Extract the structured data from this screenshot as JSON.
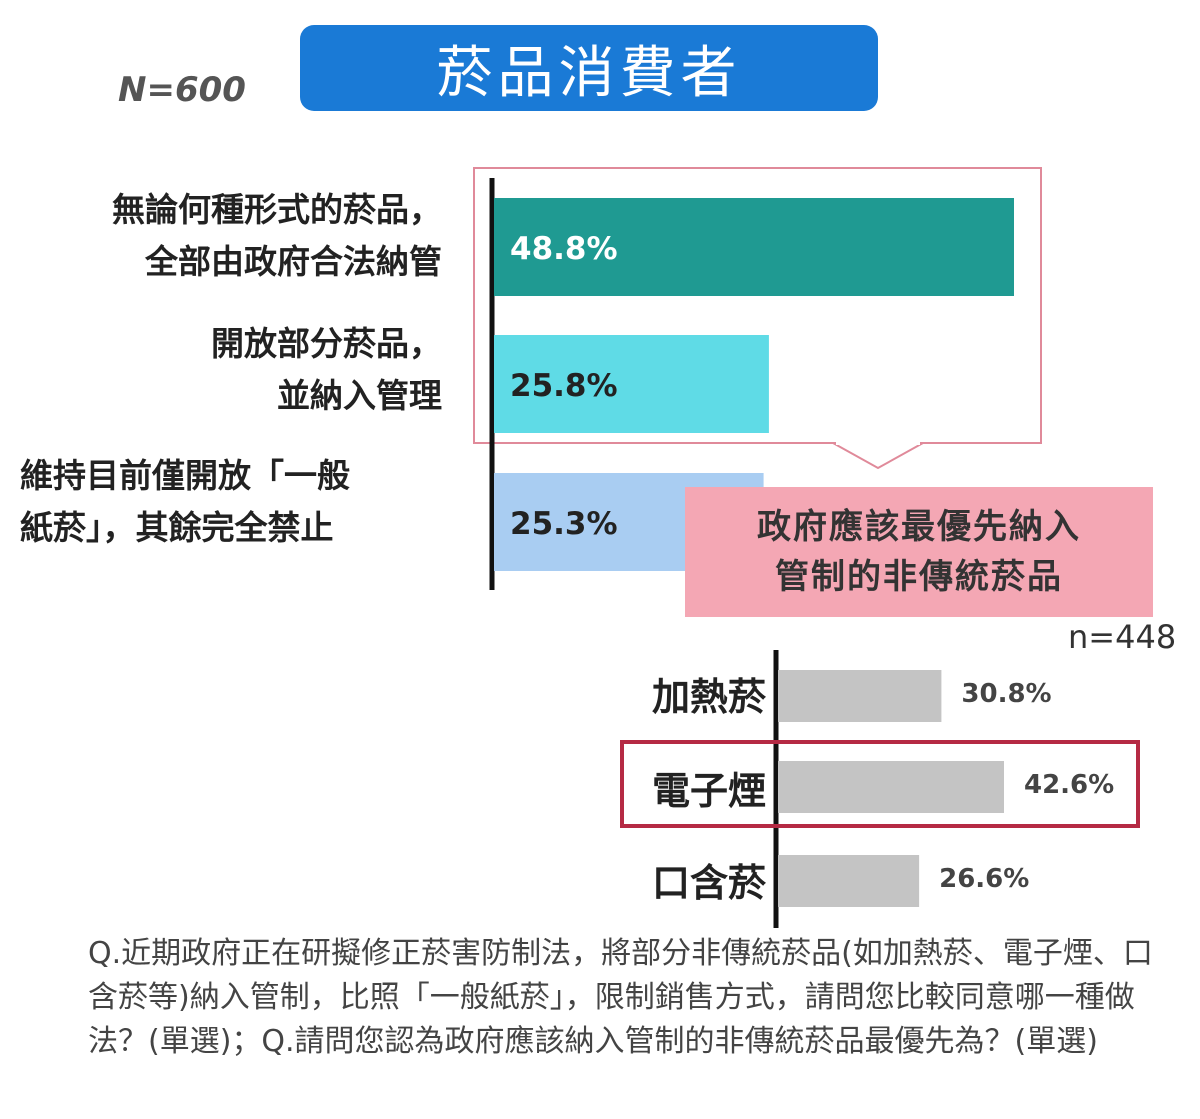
{
  "title": "菸品消費者",
  "n_main": "N=600",
  "chart_data": [
    {
      "type": "bar",
      "orientation": "horizontal",
      "categories": [
        [
          "無論何種形式的菸品，",
          "全部由政府合法納管"
        ],
        [
          "開放部分菸品，",
          "並納入管理"
        ],
        [
          "維持目前僅開放「一般",
          "紙菸」，其餘完全禁止"
        ]
      ],
      "values": [
        48.8,
        25.8,
        25.3
      ],
      "value_labels": [
        "48.8%",
        "25.8%",
        "25.3%"
      ],
      "colors": [
        "#1f9a92",
        "#5fdbe6",
        "#a9cdf2"
      ],
      "label_colors": [
        "#ffffff",
        "#222222",
        "#222222"
      ],
      "xlim": [
        0,
        50
      ],
      "unit": "%"
    },
    {
      "type": "bar",
      "orientation": "horizontal",
      "title": [
        "政府應該最優先納入",
        "管制的非傳統菸品"
      ],
      "n": "n=448",
      "categories": [
        "加熱菸",
        "電子煙",
        "口含菸"
      ],
      "values": [
        30.8,
        42.6,
        26.6
      ],
      "value_labels": [
        "30.8%",
        "42.6%",
        "26.6%"
      ],
      "colors": [
        "#c4c4c4",
        "#c4c4c4",
        "#c4c4c4"
      ],
      "highlighted": "電子煙",
      "xlim": [
        0,
        50
      ],
      "unit": "%"
    }
  ],
  "colors": {
    "title_bg": "#1a7ad6",
    "callout_bg": "#f4a7b4",
    "pink_border": "#e08a9a",
    "highlight_border": "#b52a44"
  },
  "question_text": "Q.近期政府正在研擬修正菸害防制法，將部分非傳統菸品(如加熱菸、電子煙、口含菸等)納入管制，比照「一般紙菸」，限制銷售方式，請問您比較同意哪一種做法？(單選)；Q.請問您認為政府應該納入管制的非傳統菸品最優先為？(單選)"
}
